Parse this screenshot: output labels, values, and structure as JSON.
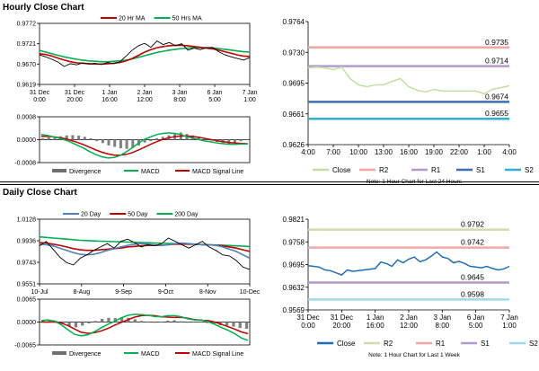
{
  "sections": {
    "hourly_title": "Hourly Close Chart",
    "daily_title": "Daily Close Chart"
  },
  "chart_data": [
    {
      "id": "hourly-price",
      "type": "line",
      "title": "Hourly Close Chart",
      "legend": [
        "20 Hr MA",
        "50 Hrs MA"
      ],
      "legend_colors": [
        "#c00000",
        "#00b050"
      ],
      "y_ticks": [
        "0.9772",
        "0.9721",
        "0.9670",
        "0.9619"
      ],
      "ylim": [
        0.9619,
        0.9772
      ],
      "x_ticks": [
        "31 Dec\n0:00",
        "31 Dec\n20:00",
        "1 Jan\n16:00",
        "2 Jan\n12:00",
        "3 Jan\n8:00",
        "6 Jan\n5:00",
        "7 Jan\n1:00"
      ],
      "series": [
        {
          "name": "Price",
          "color": "#000000",
          "values": [
            0.9693,
            0.9688,
            0.9682,
            0.9675,
            0.9664,
            0.9671,
            0.9668,
            0.9673,
            0.967,
            0.9672,
            0.9669,
            0.9674,
            0.9671,
            0.9676,
            0.969,
            0.9705,
            0.9716,
            0.9722,
            0.9712,
            0.9728,
            0.9719,
            0.9724,
            0.9716,
            0.9721,
            0.9705,
            0.971,
            0.9706,
            0.9711,
            0.9712,
            0.9701,
            0.9693,
            0.9688,
            0.9684,
            0.968,
            0.9686
          ]
        },
        {
          "name": "20 Hr MA",
          "color": "#c00000",
          "values": [
            0.9696,
            0.9694,
            0.969,
            0.9685,
            0.968,
            0.9676,
            0.9673,
            0.9672,
            0.9671,
            0.967,
            0.967,
            0.9671,
            0.9672,
            0.9674,
            0.9678,
            0.9684,
            0.9692,
            0.97,
            0.9706,
            0.9711,
            0.9714,
            0.9716,
            0.9717,
            0.9717,
            0.9716,
            0.9714,
            0.9712,
            0.971,
            0.9708,
            0.9705,
            0.9701,
            0.9697,
            0.9693,
            0.969,
            0.9689
          ]
        },
        {
          "name": "50 Hrs MA",
          "color": "#00b050",
          "values": [
            0.9704,
            0.97,
            0.9696,
            0.9692,
            0.9688,
            0.9685,
            0.9682,
            0.968,
            0.9678,
            0.9677,
            0.9676,
            0.9676,
            0.9677,
            0.9678,
            0.968,
            0.9683,
            0.9687,
            0.9691,
            0.9695,
            0.9699,
            0.9702,
            0.9705,
            0.9707,
            0.9709,
            0.971,
            0.9711,
            0.9711,
            0.9711,
            0.971,
            0.9709,
            0.9707,
            0.9705,
            0.9703,
            0.9701,
            0.97
          ]
        }
      ]
    },
    {
      "id": "hourly-macd",
      "type": "bar",
      "y_ticks": [
        "0.0008",
        "0.0000",
        "-0.0008"
      ],
      "ylim": [
        -0.0008,
        0.0008
      ],
      "legend": [
        "Divergence",
        "MACD",
        "MACD Signal Line"
      ],
      "legend_colors": [
        "#707070",
        "#00b050",
        "#c00000"
      ],
      "divergence": [
        5e-05,
        8e-05,
        0.0001,
        0.00012,
        0.00015,
        0.00016,
        0.00014,
        0.0001,
        5e-05,
        -5e-05,
        -0.00012,
        -0.0002,
        -0.00025,
        -0.0003,
        -0.00032,
        -0.00028,
        -0.0002,
        -0.0001,
        -5e-05,
        5e-05,
        0.0001,
        0.00015,
        0.0002,
        0.00025,
        0.0002,
        0.00015,
        8e-05,
        3e-05,
        -3e-05,
        -8e-05,
        -0.00012,
        -0.00015,
        -0.0001,
        -5e-05,
        -2e-05
      ],
      "macd": [
        0.00018,
        0.00015,
        0.0001,
        5e-05,
        -2e-05,
        -0.0001,
        -0.0002,
        -0.0003,
        -0.00042,
        -0.00052,
        -0.0006,
        -0.00064,
        -0.00062,
        -0.00055,
        -0.00042,
        -0.00028,
        -0.00012,
        2e-05,
        0.0001,
        0.00018,
        0.00022,
        0.00024,
        0.00022,
        0.00018,
        0.0001,
        5e-05,
        0.0,
        -5e-05,
        -8e-05,
        -0.00012,
        -0.00014,
        -0.00016,
        -0.00016,
        -0.00015,
        -0.00015
      ],
      "signal": [
        0.00012,
        0.00012,
        0.0001,
        7e-05,
        3e-05,
        -3e-05,
        -0.0001,
        -0.00018,
        -0.00027,
        -0.00036,
        -0.00044,
        -0.0005,
        -0.00054,
        -0.00054,
        -0.00051,
        -0.00045,
        -0.00036,
        -0.00026,
        -0.00016,
        -7e-05,
        1e-05,
        7e-05,
        0.00011,
        0.00013,
        0.00013,
        0.00011,
        8e-05,
        4e-05,
        0.0,
        -4e-05,
        -7e-05,
        -0.0001,
        -0.00012,
        -0.00013,
        -0.00014
      ]
    },
    {
      "id": "hourly-levels",
      "type": "line",
      "y_ticks": [
        "0.9764",
        "0.9730",
        "0.9695",
        "0.9661",
        "0.9626"
      ],
      "ylim": [
        0.9626,
        0.9764
      ],
      "x_ticks": [
        "4:00",
        "7:00",
        "10:00",
        "13:00",
        "16:00",
        "19:00",
        "22:00",
        "1:00",
        "4:00"
      ],
      "levels": [
        {
          "name": "R2",
          "value": 0.9735,
          "label": "0.9735",
          "color": "#f4a6a6"
        },
        {
          "name": "R1",
          "value": 0.9714,
          "label": "0.9714",
          "color": "#b39ccc"
        },
        {
          "name": "S1",
          "value": 0.9674,
          "label": "0.9674",
          "color": "#3f6fb0"
        },
        {
          "name": "S2",
          "value": 0.9655,
          "label": "0.9655",
          "color": "#34aed0"
        }
      ],
      "close": {
        "name": "Close",
        "color": "#c4dfa2",
        "values": [
          0.9712,
          0.9713,
          0.9712,
          0.971,
          0.9713,
          0.97,
          0.9693,
          0.9691,
          0.9693,
          0.9693,
          0.9697,
          0.97,
          0.9691,
          0.9687,
          0.9685,
          0.9688,
          0.9686,
          0.9686,
          0.9686,
          0.9686,
          0.9686,
          0.9683,
          0.9688,
          0.969,
          0.9692
        ]
      },
      "legend": [
        "Close",
        "R2",
        "R1",
        "S1",
        "S2"
      ],
      "note": "Note: 1 Hour Chart for Last 24 Hours"
    },
    {
      "id": "daily-price",
      "type": "line",
      "title": "Daily Close Chart",
      "legend": [
        "20 Day",
        "50 Day",
        "200 Day"
      ],
      "legend_colors": [
        "#4f81bd",
        "#c00000",
        "#00b050"
      ],
      "y_ticks": [
        "1.0128",
        "0.9936",
        "0.9743",
        "0.9551"
      ],
      "ylim": [
        0.9551,
        1.0128
      ],
      "x_ticks": [
        "10-Jul",
        "8-Aug",
        "9-Sep",
        "9-Oct",
        "8-Nov",
        "10-Dec"
      ],
      "series": [
        {
          "name": "Price",
          "color": "#000000",
          "values": [
            0.989,
            0.993,
            0.986,
            0.979,
            0.974,
            0.972,
            0.978,
            0.981,
            0.985,
            0.988,
            0.991,
            0.987,
            0.993,
            0.995,
            0.992,
            0.988,
            0.99,
            0.989,
            0.991,
            0.996,
            0.993,
            0.99,
            0.987,
            0.99,
            0.993,
            0.988,
            0.985,
            0.981,
            0.98,
            0.976,
            0.97,
            0.968
          ]
        },
        {
          "name": "20 Day",
          "color": "#4f81bd",
          "values": [
            0.9905,
            0.99,
            0.989,
            0.987,
            0.985,
            0.983,
            0.9815,
            0.981,
            0.9815,
            0.983,
            0.985,
            0.9865,
            0.988,
            0.9895,
            0.9905,
            0.991,
            0.9905,
            0.99,
            0.9895,
            0.99,
            0.991,
            0.9915,
            0.991,
            0.9905,
            0.99,
            0.99,
            0.9895,
            0.988,
            0.986,
            0.984,
            0.981,
            0.978
          ]
        },
        {
          "name": "50 Day",
          "color": "#c00000",
          "values": [
            0.992,
            0.9915,
            0.9905,
            0.9895,
            0.988,
            0.9865,
            0.9855,
            0.985,
            0.985,
            0.9855,
            0.986,
            0.9865,
            0.987,
            0.988,
            0.9885,
            0.989,
            0.9895,
            0.9895,
            0.9895,
            0.99,
            0.9905,
            0.9905,
            0.9905,
            0.9905,
            0.99,
            0.99,
            0.9895,
            0.989,
            0.988,
            0.987,
            0.9855,
            0.984
          ]
        },
        {
          "name": "200 Day",
          "color": "#00b050",
          "values": [
            0.997,
            0.9965,
            0.996,
            0.9955,
            0.995,
            0.9945,
            0.994,
            0.9937,
            0.9934,
            0.9932,
            0.993,
            0.9928,
            0.9926,
            0.9924,
            0.9922,
            0.992,
            0.9918,
            0.9916,
            0.9914,
            0.9912,
            0.991,
            0.9908,
            0.9906,
            0.9904,
            0.9902,
            0.99,
            0.9898,
            0.9896,
            0.9893,
            0.989,
            0.9887,
            0.9884
          ]
        }
      ]
    },
    {
      "id": "daily-macd",
      "type": "bar",
      "y_ticks": [
        "0.0065",
        "0.0000",
        "-0.0065"
      ],
      "ylim": [
        -0.0065,
        0.0065
      ],
      "legend": [
        "Divergence",
        "MACD",
        "MACD Signal Line"
      ],
      "legend_colors": [
        "#707070",
        "#00b050",
        "#c00000"
      ],
      "divergence": [
        0.0004,
        0.0006,
        0.0003,
        -0.0005,
        -0.0012,
        -0.0015,
        -0.001,
        -0.0004,
        0.0003,
        0.0009,
        0.0012,
        0.0011,
        0.0013,
        0.0012,
        0.0008,
        0.0003,
        0.0,
        -0.0002,
        0.0,
        0.0004,
        0.0005,
        0.0002,
        -0.0002,
        -0.0001,
        0.0001,
        -0.0003,
        -0.0006,
        -0.0009,
        -0.001,
        -0.0013,
        -0.0017,
        -0.0019
      ],
      "macd": [
        0.0004,
        0.0006,
        0.0003,
        -0.0008,
        -0.0022,
        -0.0035,
        -0.0039,
        -0.0036,
        -0.0027,
        -0.0016,
        -0.0006,
        0.0002,
        0.0012,
        0.0019,
        0.0022,
        0.0021,
        0.0019,
        0.0016,
        0.0015,
        0.0018,
        0.0018,
        0.0015,
        0.0009,
        0.0006,
        0.0006,
        0.0001,
        -0.0006,
        -0.0015,
        -0.0023,
        -0.0033,
        -0.0045,
        -0.0052
      ],
      "signal": [
        0.0,
        0.0,
        0.0,
        -0.0003,
        -0.001,
        -0.002,
        -0.0029,
        -0.0032,
        -0.003,
        -0.0025,
        -0.0018,
        -0.0009,
        -0.0001,
        0.0007,
        0.0014,
        0.0018,
        0.0019,
        0.0018,
        0.0015,
        0.0014,
        0.0013,
        0.0013,
        0.0011,
        0.0007,
        0.0005,
        0.0004,
        0.0,
        -0.0006,
        -0.0013,
        -0.002,
        -0.0028,
        -0.0033
      ]
    },
    {
      "id": "daily-levels",
      "type": "line",
      "y_ticks": [
        "0.9821",
        "0.9758",
        "0.9695",
        "0.9632",
        "0.9569"
      ],
      "ylim": [
        0.9569,
        0.9821
      ],
      "x_ticks": [
        "31 Dec\n0:00",
        "31 Dec\n20:00",
        "1 Jan\n16:00",
        "2 Jan\n12:00",
        "3 Jan\n8:00",
        "6 Jan\n5:00",
        "7 Jan\n1:00"
      ],
      "levels": [
        {
          "name": "R2",
          "value": 0.9792,
          "label": "0.9792",
          "color": "#d8d8b0"
        },
        {
          "name": "R1",
          "value": 0.9742,
          "label": "0.9742",
          "color": "#f4a6a6"
        },
        {
          "name": "S1",
          "value": 0.9645,
          "label": "0.9645",
          "color": "#b39ccc"
        },
        {
          "name": "S2",
          "value": 0.9598,
          "label": "0.9598",
          "color": "#9fd8e8"
        }
      ],
      "close": {
        "name": "Close",
        "color": "#1f6fb4",
        "values": [
          0.9692,
          0.969,
          0.9688,
          0.968,
          0.9678,
          0.9672,
          0.9666,
          0.968,
          0.9676,
          0.9678,
          0.968,
          0.9682,
          0.9684,
          0.9702,
          0.9698,
          0.969,
          0.9708,
          0.97,
          0.971,
          0.9716,
          0.9703,
          0.9708,
          0.9718,
          0.973,
          0.9716,
          0.9712,
          0.97,
          0.9704,
          0.9698,
          0.969,
          0.9688,
          0.9686,
          0.969,
          0.9684,
          0.968,
          0.9683,
          0.969
        ]
      },
      "legend": [
        "Close",
        "R2",
        "R1",
        "S1",
        "S2"
      ],
      "note": "Note: 1 Hour Chart for Last 1 Week"
    }
  ]
}
